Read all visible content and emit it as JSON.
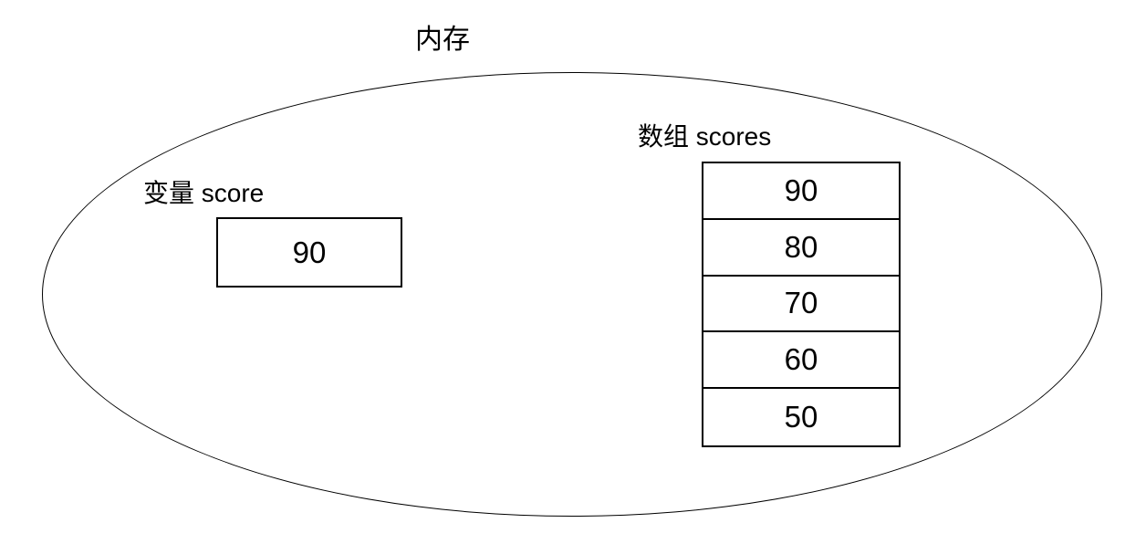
{
  "title": "内存",
  "variable": {
    "label": "变量 score",
    "value": "90"
  },
  "array": {
    "label": "数组 scores",
    "values": [
      "90",
      "80",
      "70",
      "60",
      "50"
    ]
  }
}
